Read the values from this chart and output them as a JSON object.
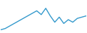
{
  "y_values": [
    2,
    3,
    5,
    7,
    9,
    11,
    13,
    15,
    17,
    14,
    19,
    13,
    8,
    12,
    7,
    10,
    8,
    11,
    12,
    13
  ],
  "line_color": "#3399cc",
  "line_width": 1.0,
  "background_color": "#ffffff",
  "ylim": [
    0,
    25
  ],
  "xlim": [
    0,
    19
  ]
}
